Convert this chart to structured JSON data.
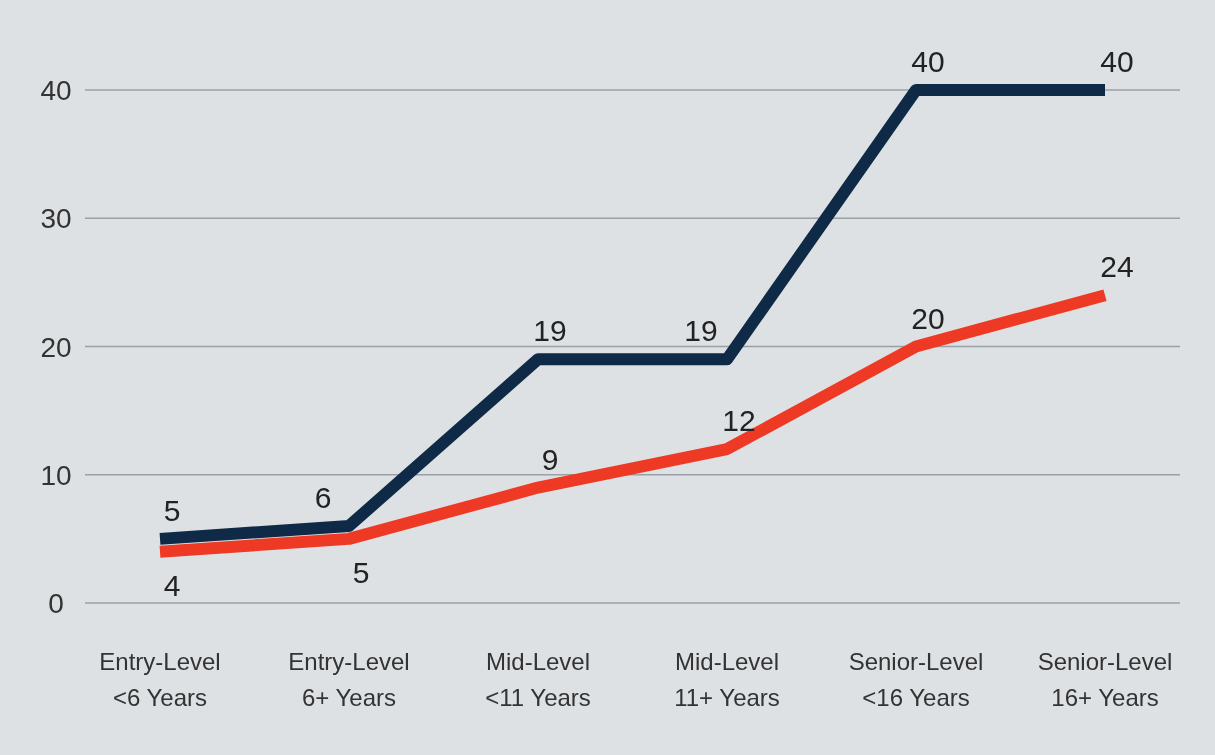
{
  "chart_data": {
    "type": "line",
    "categories": [
      "Entry-Level\n<6 Years",
      "Entry-Level\n6+ Years",
      "Mid-Level\n<11 Years",
      "Mid-Level\n11+ Years",
      "Senior-Level\n<16 Years",
      "Senior-Level\n16+ Years"
    ],
    "series": [
      {
        "color": "#0e2a47",
        "values": [
          5,
          6,
          19,
          19,
          40,
          40
        ]
      },
      {
        "color": "#ee3a24",
        "values": [
          4,
          5,
          9,
          12,
          20,
          24
        ]
      }
    ],
    "ylim": [
      0,
      40
    ],
    "yticks": [
      0,
      10,
      20,
      30,
      40
    ],
    "grid": "y",
    "data_labels": true,
    "marker": "none",
    "line_style": "solid"
  }
}
